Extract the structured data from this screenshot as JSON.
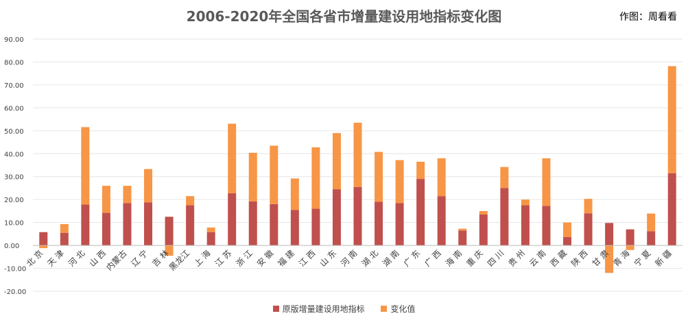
{
  "page": {
    "title": "2006-2020年全国各省市增量建设用地指标变化图",
    "author_note": "作图：周看看"
  },
  "colors": {
    "base": "#c0504d",
    "change": "#f79646",
    "grid": "#e6e6e6",
    "axis_text": "#404040"
  },
  "chart_data": {
    "type": "bar",
    "stacked": true,
    "title": "2006-2020年全国各省市增量建设用地指标变化图",
    "ylim": [
      -20,
      90
    ],
    "ytick_step": 10,
    "yticks": [
      "90.00",
      "80.00",
      "70.00",
      "60.00",
      "50.00",
      "40.00",
      "30.00",
      "20.00",
      "10.00",
      "0.00",
      "-10.00",
      "-20.00"
    ],
    "grid": true,
    "legend_position": "bottom",
    "categories": [
      "北 京",
      "天 津",
      "河 北",
      "山 西",
      "内蒙古",
      "辽 宁",
      "吉 林",
      "黑龙江",
      "上 海",
      "江 苏",
      "浙 江",
      "安 徽",
      "福 建",
      "江 西",
      "山 东",
      "河 南",
      "湖 北",
      "湖 南",
      "广 东",
      "广 西",
      "海 南",
      "重 庆",
      "四 川",
      "贵 州",
      "云 南",
      "西 藏",
      "陕 西",
      "甘 肃",
      "青 海",
      "宁 夏",
      "新 疆"
    ],
    "series": [
      {
        "name": "原版增量建设用地指标",
        "values": [
          5.8,
          5.5,
          17.8,
          14.2,
          18.5,
          18.8,
          12.5,
          17.5,
          5.8,
          22.8,
          19.2,
          18.0,
          15.5,
          16.0,
          24.5,
          25.5,
          19.0,
          18.5,
          29.0,
          21.5,
          6.5,
          13.5,
          25.0,
          17.5,
          17.2,
          3.7,
          14.0,
          9.8,
          7.0,
          6.2,
          31.5
        ]
      },
      {
        "name": "变化值",
        "values": [
          -1.2,
          3.8,
          33.8,
          11.8,
          7.5,
          14.5,
          -4.5,
          4.0,
          2.0,
          30.3,
          21.2,
          25.5,
          13.7,
          26.8,
          24.5,
          28.0,
          21.8,
          18.7,
          7.5,
          16.5,
          0.8,
          1.5,
          9.2,
          2.5,
          20.8,
          6.3,
          6.3,
          -12.0,
          -2.0,
          7.7,
          46.7
        ]
      }
    ]
  }
}
